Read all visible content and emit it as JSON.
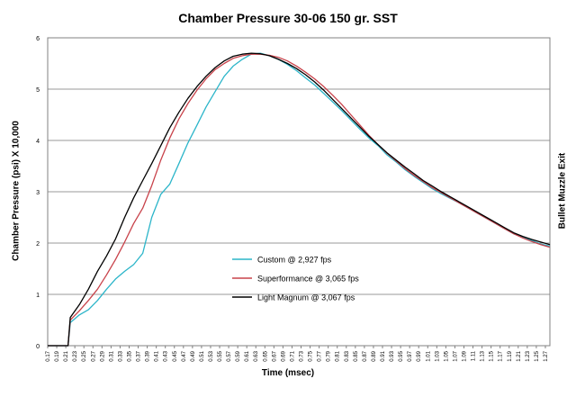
{
  "chart_data": {
    "type": "line",
    "title": "Chamber Pressure 30-06 150 gr. SST",
    "xlabel": "Time (msec)",
    "ylabel": "Chamber Pressure (psi) X 10,000",
    "right_label": "Bullet Muzzle Exit",
    "xlim": [
      0.17,
      1.28
    ],
    "ylim": [
      0,
      6
    ],
    "yticks": [
      0,
      1,
      2,
      3,
      4,
      5,
      6
    ],
    "xtick_labels": [
      "0.17",
      "0.19",
      "0.21",
      "0.23",
      "0.25",
      "0.27",
      "0.29",
      "0.31",
      "0.33",
      "0.35",
      "0.37",
      "0.39",
      "0.41",
      "0.43",
      "0.45",
      "0.47",
      "0.49",
      "0.51",
      "0.53",
      "0.55",
      "0.57",
      "0.59",
      "0.61",
      "0.63",
      "0.65",
      "0.67",
      "0.69",
      "0.71",
      "0.73",
      "0.75",
      "0.77",
      "0.79",
      "0.81",
      "0.83",
      "0.85",
      "0.87",
      "0.89",
      "0.91",
      "0.93",
      "0.95",
      "0.97",
      "0.99",
      "1.01",
      "1.03",
      "1.05",
      "1.07",
      "1.09",
      "1.11",
      "1.13",
      "1.15",
      "1.17",
      "1.19",
      "1.21",
      "1.23",
      "1.25",
      "1.27"
    ],
    "grid": "horizontal",
    "legend_position": "center-left",
    "series": [
      {
        "name": "Custom @ 2,927 fps",
        "color": "#2bb5c9",
        "points": [
          [
            0.17,
            0
          ],
          [
            0.19,
            0
          ],
          [
            0.21,
            0
          ],
          [
            0.215,
            0
          ],
          [
            0.22,
            0.45
          ],
          [
            0.24,
            0.6
          ],
          [
            0.26,
            0.7
          ],
          [
            0.28,
            0.88
          ],
          [
            0.3,
            1.1
          ],
          [
            0.32,
            1.3
          ],
          [
            0.34,
            1.45
          ],
          [
            0.36,
            1.58
          ],
          [
            0.38,
            1.8
          ],
          [
            0.4,
            2.5
          ],
          [
            0.42,
            2.95
          ],
          [
            0.44,
            3.15
          ],
          [
            0.46,
            3.55
          ],
          [
            0.48,
            3.95
          ],
          [
            0.5,
            4.3
          ],
          [
            0.52,
            4.65
          ],
          [
            0.54,
            4.95
          ],
          [
            0.56,
            5.25
          ],
          [
            0.58,
            5.45
          ],
          [
            0.6,
            5.58
          ],
          [
            0.62,
            5.68
          ],
          [
            0.64,
            5.7
          ],
          [
            0.66,
            5.65
          ],
          [
            0.68,
            5.58
          ],
          [
            0.7,
            5.48
          ],
          [
            0.72,
            5.36
          ],
          [
            0.74,
            5.22
          ],
          [
            0.76,
            5.08
          ],
          [
            0.78,
            4.92
          ],
          [
            0.8,
            4.75
          ],
          [
            0.82,
            4.58
          ],
          [
            0.84,
            4.4
          ],
          [
            0.86,
            4.22
          ],
          [
            0.88,
            4.05
          ],
          [
            0.9,
            3.9
          ],
          [
            0.92,
            3.72
          ],
          [
            0.94,
            3.58
          ],
          [
            0.96,
            3.43
          ],
          [
            0.98,
            3.3
          ],
          [
            1.0,
            3.18
          ],
          [
            1.02,
            3.06
          ],
          [
            1.04,
            2.96
          ],
          [
            1.06,
            2.87
          ],
          [
            1.08,
            2.78
          ],
          [
            1.1,
            2.68
          ],
          [
            1.12,
            2.58
          ],
          [
            1.14,
            2.48
          ],
          [
            1.16,
            2.38
          ],
          [
            1.18,
            2.28
          ],
          [
            1.2,
            2.18
          ],
          [
            1.22,
            2.12
          ],
          [
            1.24,
            2.05
          ],
          [
            1.26,
            1.98
          ],
          [
            1.28,
            1.94
          ]
        ]
      },
      {
        "name": "Superformance @ 3,065 fps",
        "color": "#c8424a",
        "points": [
          [
            0.17,
            0
          ],
          [
            0.19,
            0
          ],
          [
            0.21,
            0
          ],
          [
            0.215,
            0
          ],
          [
            0.22,
            0.5
          ],
          [
            0.24,
            0.68
          ],
          [
            0.26,
            0.88
          ],
          [
            0.28,
            1.1
          ],
          [
            0.3,
            1.38
          ],
          [
            0.32,
            1.68
          ],
          [
            0.34,
            2.02
          ],
          [
            0.36,
            2.38
          ],
          [
            0.38,
            2.68
          ],
          [
            0.4,
            3.12
          ],
          [
            0.42,
            3.62
          ],
          [
            0.44,
            4.05
          ],
          [
            0.46,
            4.42
          ],
          [
            0.48,
            4.72
          ],
          [
            0.5,
            4.98
          ],
          [
            0.52,
            5.2
          ],
          [
            0.54,
            5.38
          ],
          [
            0.56,
            5.5
          ],
          [
            0.58,
            5.6
          ],
          [
            0.6,
            5.65
          ],
          [
            0.62,
            5.68
          ],
          [
            0.64,
            5.68
          ],
          [
            0.66,
            5.66
          ],
          [
            0.68,
            5.62
          ],
          [
            0.7,
            5.55
          ],
          [
            0.72,
            5.45
          ],
          [
            0.74,
            5.33
          ],
          [
            0.76,
            5.2
          ],
          [
            0.78,
            5.05
          ],
          [
            0.8,
            4.88
          ],
          [
            0.82,
            4.7
          ],
          [
            0.84,
            4.5
          ],
          [
            0.86,
            4.3
          ],
          [
            0.88,
            4.1
          ],
          [
            0.9,
            3.92
          ],
          [
            0.92,
            3.75
          ],
          [
            0.94,
            3.6
          ],
          [
            0.96,
            3.45
          ],
          [
            0.98,
            3.32
          ],
          [
            1.0,
            3.2
          ],
          [
            1.02,
            3.08
          ],
          [
            1.04,
            2.98
          ],
          [
            1.06,
            2.88
          ],
          [
            1.08,
            2.78
          ],
          [
            1.1,
            2.68
          ],
          [
            1.12,
            2.58
          ],
          [
            1.14,
            2.48
          ],
          [
            1.16,
            2.38
          ],
          [
            1.18,
            2.28
          ],
          [
            1.2,
            2.18
          ],
          [
            1.22,
            2.1
          ],
          [
            1.24,
            2.03
          ],
          [
            1.26,
            1.97
          ],
          [
            1.28,
            1.92
          ]
        ]
      },
      {
        "name": "Light Magnum @ 3,067 fps",
        "color": "#000000",
        "points": [
          [
            0.17,
            0
          ],
          [
            0.19,
            0
          ],
          [
            0.21,
            0
          ],
          [
            0.215,
            0
          ],
          [
            0.22,
            0.55
          ],
          [
            0.24,
            0.8
          ],
          [
            0.26,
            1.1
          ],
          [
            0.28,
            1.45
          ],
          [
            0.3,
            1.75
          ],
          [
            0.32,
            2.08
          ],
          [
            0.34,
            2.5
          ],
          [
            0.36,
            2.88
          ],
          [
            0.38,
            3.22
          ],
          [
            0.4,
            3.55
          ],
          [
            0.42,
            3.9
          ],
          [
            0.44,
            4.25
          ],
          [
            0.46,
            4.55
          ],
          [
            0.48,
            4.82
          ],
          [
            0.5,
            5.05
          ],
          [
            0.52,
            5.25
          ],
          [
            0.54,
            5.42
          ],
          [
            0.56,
            5.55
          ],
          [
            0.58,
            5.64
          ],
          [
            0.6,
            5.68
          ],
          [
            0.62,
            5.7
          ],
          [
            0.64,
            5.69
          ],
          [
            0.66,
            5.65
          ],
          [
            0.68,
            5.58
          ],
          [
            0.7,
            5.5
          ],
          [
            0.72,
            5.4
          ],
          [
            0.74,
            5.28
          ],
          [
            0.76,
            5.14
          ],
          [
            0.78,
            4.98
          ],
          [
            0.8,
            4.8
          ],
          [
            0.82,
            4.62
          ],
          [
            0.84,
            4.44
          ],
          [
            0.86,
            4.26
          ],
          [
            0.88,
            4.08
          ],
          [
            0.9,
            3.92
          ],
          [
            0.92,
            3.76
          ],
          [
            0.94,
            3.62
          ],
          [
            0.96,
            3.48
          ],
          [
            0.98,
            3.35
          ],
          [
            1.0,
            3.22
          ],
          [
            1.02,
            3.11
          ],
          [
            1.04,
            3.0
          ],
          [
            1.06,
            2.9
          ],
          [
            1.08,
            2.8
          ],
          [
            1.1,
            2.7
          ],
          [
            1.12,
            2.6
          ],
          [
            1.14,
            2.5
          ],
          [
            1.16,
            2.4
          ],
          [
            1.18,
            2.3
          ],
          [
            1.2,
            2.2
          ],
          [
            1.22,
            2.13
          ],
          [
            1.24,
            2.07
          ],
          [
            1.26,
            2.02
          ],
          [
            1.28,
            1.97
          ]
        ]
      }
    ]
  }
}
